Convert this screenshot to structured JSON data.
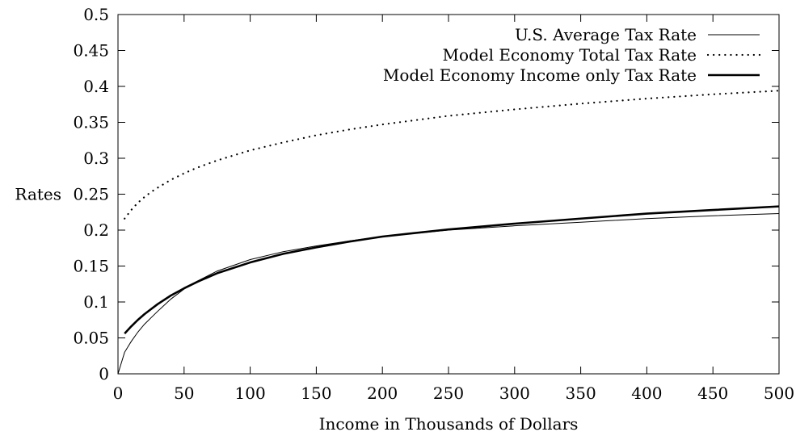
{
  "chart_data": {
    "type": "line",
    "title": "",
    "xlabel": "Income in Thousands of Dollars",
    "ylabel": "Rates",
    "xlim": [
      0,
      500
    ],
    "ylim": [
      0,
      0.5
    ],
    "xticks": [
      0,
      50,
      100,
      150,
      200,
      250,
      300,
      350,
      400,
      450,
      500
    ],
    "yticks": [
      0,
      0.05,
      0.1,
      0.15,
      0.2,
      0.25,
      0.3,
      0.35,
      0.4,
      0.45,
      0.5
    ],
    "grid": false,
    "legend_position": "top-right",
    "series": [
      {
        "name": "U.S. Average Tax Rate",
        "style": "thin-solid",
        "x": [
          0,
          5,
          10,
          15,
          20,
          25,
          30,
          40,
          50,
          60,
          75,
          100,
          125,
          150,
          175,
          200,
          250,
          300,
          350,
          400,
          450,
          500
        ],
        "y": [
          0.0,
          0.03,
          0.045,
          0.058,
          0.069,
          0.078,
          0.087,
          0.104,
          0.118,
          0.129,
          0.143,
          0.159,
          0.17,
          0.178,
          0.185,
          0.191,
          0.2,
          0.206,
          0.211,
          0.216,
          0.22,
          0.223
        ]
      },
      {
        "name": "Model Economy Total Tax Rate",
        "style": "dotted",
        "x": [
          5,
          10,
          15,
          20,
          25,
          30,
          40,
          50,
          60,
          75,
          100,
          125,
          150,
          175,
          200,
          250,
          300,
          350,
          400,
          450,
          500
        ],
        "y": [
          0.216,
          0.228,
          0.238,
          0.246,
          0.253,
          0.259,
          0.27,
          0.279,
          0.287,
          0.297,
          0.311,
          0.322,
          0.332,
          0.34,
          0.347,
          0.359,
          0.368,
          0.376,
          0.383,
          0.389,
          0.394
        ]
      },
      {
        "name": "Model Economy Income only Tax Rate",
        "style": "thick-solid",
        "x": [
          5,
          10,
          15,
          20,
          25,
          30,
          40,
          50,
          60,
          75,
          100,
          125,
          150,
          175,
          200,
          250,
          300,
          350,
          400,
          450,
          500
        ],
        "y": [
          0.056,
          0.066,
          0.075,
          0.083,
          0.09,
          0.097,
          0.109,
          0.119,
          0.128,
          0.14,
          0.155,
          0.167,
          0.176,
          0.184,
          0.191,
          0.201,
          0.209,
          0.216,
          0.223,
          0.228,
          0.233
        ]
      }
    ]
  }
}
